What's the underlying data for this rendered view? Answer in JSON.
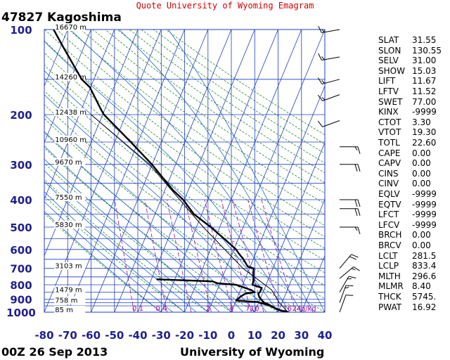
{
  "header": {
    "site_title": "Quote University of Wyoming Emagram",
    "station": "47827  Kagoshima",
    "date": "00Z 26 Sep 2013",
    "source": "University of Wyoming"
  },
  "chart_data": {
    "type": "line",
    "xlim": [
      -80,
      40
    ],
    "ylim": [
      1000,
      100
    ],
    "y_scale": "log",
    "x_ticks": [
      "-80",
      "-70",
      "-60",
      "-50",
      "-40",
      "-30",
      "-20",
      "-10",
      "0",
      "10",
      "20",
      "30",
      "40"
    ],
    "y_ticks": [
      "100",
      "200",
      "300",
      "400",
      "500",
      "600",
      "700",
      "800",
      "900",
      "1000"
    ],
    "height_labels": [
      {
        "p": 100,
        "label": "16670 m"
      },
      {
        "p": 150,
        "label": "14260 m"
      },
      {
        "p": 200,
        "label": "12438 m"
      },
      {
        "p": 250,
        "label": "10960 m"
      },
      {
        "p": 300,
        "label": "9670 m"
      },
      {
        "p": 400,
        "label": "7550 m"
      },
      {
        "p": 500,
        "label": "5830 m"
      },
      {
        "p": 700,
        "label": "3103 m"
      },
      {
        "p": 850,
        "label": "1479 m"
      },
      {
        "p": 925,
        "label": "758 m"
      },
      {
        "p": 1000,
        "label": "85 m"
      }
    ],
    "mixing_ratio_labels": [
      {
        "t": -40,
        "label": "0.1"
      },
      {
        "t": -30,
        "label": "0.4"
      },
      {
        "t": -10,
        "label": "2"
      },
      {
        "t": 0,
        "label": "4"
      },
      {
        "t": 7,
        "label": "7"
      },
      {
        "t": 10,
        "label": "10"
      },
      {
        "t": 24,
        "label": "16"
      },
      {
        "t": 28,
        "label": "24"
      },
      {
        "t": 33,
        "label": "g/kg"
      }
    ],
    "series": [
      {
        "color": "#000000",
        "points": [
          [
            24.2,
            1000
          ],
          [
            21,
            985
          ],
          [
            18.5,
            965
          ],
          [
            16,
            940
          ],
          [
            14,
            925
          ],
          [
            13,
            905
          ],
          [
            12,
            885
          ],
          [
            11.5,
            860
          ],
          [
            12.2,
            850
          ],
          [
            13,
            820
          ],
          [
            9,
            800
          ],
          [
            9.4,
            780
          ],
          [
            9.5,
            700
          ],
          [
            7,
            690
          ],
          [
            5.2,
            650
          ],
          [
            3.2,
            620
          ],
          [
            2,
            600
          ],
          [
            -3,
            550
          ],
          [
            -8.8,
            500
          ],
          [
            -16,
            450
          ],
          [
            -20.6,
            400
          ],
          [
            -25,
            370
          ],
          [
            -34,
            300
          ],
          [
            -43,
            250
          ],
          [
            -54.5,
            200
          ],
          [
            -56,
            190
          ],
          [
            -60.5,
            160
          ],
          [
            -64,
            150
          ],
          [
            -72,
            115
          ],
          [
            -76,
            100
          ]
        ]
      },
      {
        "color": "#000000",
        "points": [
          [
            24.5,
            1000
          ],
          [
            20,
            980
          ],
          [
            16,
            945
          ],
          [
            11,
            920
          ],
          [
            2,
            910
          ],
          [
            4,
            880
          ],
          [
            6,
            860
          ],
          [
            10,
            850
          ],
          [
            8.5,
            835
          ],
          [
            2,
            800
          ],
          [
            -6,
            790
          ],
          [
            -8,
            778
          ],
          [
            -32,
            765
          ]
        ]
      },
      {
        "color": "#000000",
        "points": [
          [
            24.2,
            1000
          ],
          [
            20.5,
            925
          ],
          [
            17.2,
            833
          ],
          [
            5,
            700
          ],
          [
            -12,
            500
          ],
          [
            -35,
            300
          ],
          [
            -60,
            200
          ]
        ]
      }
    ]
  },
  "wind_barbs": [
    {
      "p": 100,
      "dir": 260,
      "spd": 15
    },
    {
      "p": 125,
      "dir": 260,
      "spd": 15
    },
    {
      "p": 150,
      "dir": 255,
      "spd": 15
    },
    {
      "p": 170,
      "dir": 250,
      "spd": 15
    },
    {
      "p": 210,
      "dir": 250,
      "spd": 10
    },
    {
      "p": 260,
      "dir": 90,
      "spd": 15
    },
    {
      "p": 300,
      "dir": 90,
      "spd": 20
    },
    {
      "p": 400,
      "dir": 90,
      "spd": 20
    },
    {
      "p": 430,
      "dir": 90,
      "spd": 20
    },
    {
      "p": 500,
      "dir": 90,
      "spd": 15
    },
    {
      "p": 700,
      "dir": 40,
      "spd": 20
    },
    {
      "p": 760,
      "dir": 50,
      "spd": 15
    },
    {
      "p": 850,
      "dir": 30,
      "spd": 15
    },
    {
      "p": 925,
      "dir": 20,
      "spd": 15
    },
    {
      "p": 1000,
      "dir": 20,
      "spd": 10
    }
  ],
  "indices": [
    {
      "k": "SLAT",
      "v": "31.55"
    },
    {
      "k": "SLON",
      "v": "130.55"
    },
    {
      "k": "SELV",
      "v": "31.00"
    },
    {
      "k": "SHOW",
      "v": "15.03"
    },
    {
      "k": "LIFT",
      "v": "11.67"
    },
    {
      "k": "LFTV",
      "v": "11.52"
    },
    {
      "k": "SWET",
      "v": "77.00"
    },
    {
      "k": "KINX",
      "v": "-9999"
    },
    {
      "k": "CTOT",
      "v": "3.30"
    },
    {
      "k": "VTOT",
      "v": "19.30"
    },
    {
      "k": "TOTL",
      "v": "22.60"
    },
    {
      "k": "CAPE",
      "v": "0.00"
    },
    {
      "k": "CAPV",
      "v": "0.00"
    },
    {
      "k": "CINS",
      "v": "0.00"
    },
    {
      "k": "CINV",
      "v": "0.00"
    },
    {
      "k": "EQLV",
      "v": "-9999"
    },
    {
      "k": "EQTV",
      "v": "-9999"
    },
    {
      "k": "LFCT",
      "v": "-9999"
    },
    {
      "k": "LFCV",
      "v": "-9999"
    },
    {
      "k": "BRCH",
      "v": "0.00"
    },
    {
      "k": "BRCV",
      "v": "0.00"
    },
    {
      "k": "LCLT",
      "v": "281.5"
    },
    {
      "k": "LCLP",
      "v": "833.4"
    },
    {
      "k": "MLTH",
      "v": "296.6"
    },
    {
      "k": "MLMR",
      "v": "8.40"
    },
    {
      "k": "THCK",
      "v": "5745."
    },
    {
      "k": "PWAT",
      "v": "16.92"
    }
  ]
}
